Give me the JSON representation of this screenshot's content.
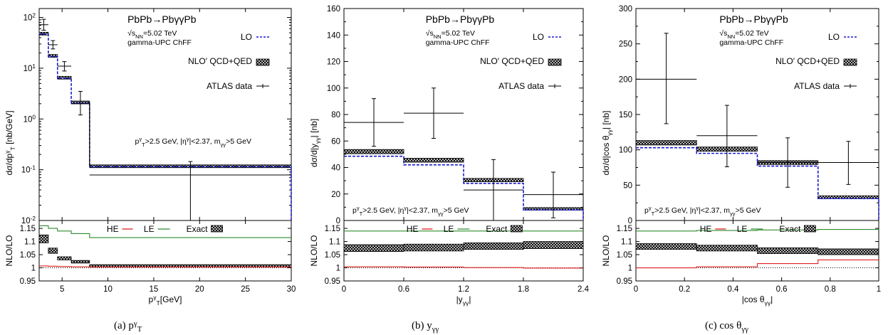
{
  "colors": {
    "lo": "#1a1ad0",
    "he": "#e02020",
    "le": "#2e8b2e",
    "nlo": "#000000",
    "data": "#000000"
  },
  "chart_data": [
    {
      "type": "line",
      "caption": "(a) p_T^γ",
      "process": "PbPb→PbγγPb",
      "energy": "√s_NN=5.02 TeV",
      "generator": "gamma-UPC ChFF",
      "cuts": "p_T^γ>2.5 GeV, |η^γ|<2.37, m_γγ>5 GeV",
      "xlabel": "p_T^γ[GeV]",
      "ylabel": "dσ/dp_T^γ [nb/GeV]",
      "ratio_ylabel": "NLO/LO",
      "xlim": [
        2.5,
        30
      ],
      "ylim": [
        0.01,
        150
      ],
      "log_y": true,
      "xticks": [
        "5",
        "10",
        "15",
        "20",
        "25",
        "30"
      ],
      "yticks": [
        "10⁻²",
        "10⁻¹",
        "10⁰",
        "10¹",
        "10²"
      ],
      "ratio_ylim": [
        0.95,
        1.18
      ],
      "ratio_yticks": [
        "0.95",
        "1",
        "1.05",
        "1.1",
        "1.15"
      ],
      "bins": [
        2.5,
        3.5,
        4.5,
        6,
        8,
        30
      ],
      "lo": [
        47,
        17,
        6.3,
        2.05,
        0.115
      ],
      "nlo": [
        48,
        17.5,
        6.5,
        2.12,
        0.117
      ],
      "data_points": [
        {
          "x": 3,
          "xerr": 0.5,
          "y": 72,
          "ylo": 56,
          "yhi": 92
        },
        {
          "x": 4,
          "xerr": 0.5,
          "y": 29,
          "ylo": 24,
          "yhi": 35
        },
        {
          "x": 5.25,
          "xerr": 0.75,
          "y": 11,
          "ylo": 8.8,
          "yhi": 13.5
        },
        {
          "x": 7,
          "xerr": 1.0,
          "y": 2.0,
          "ylo": 1.2,
          "yhi": 3.5
        },
        {
          "x": 19,
          "xerr": 11,
          "y": 0.079,
          "ylo": 0.01,
          "yhi": 0.145
        }
      ],
      "ratio_band": [
        [
          1.095,
          1.125
        ],
        [
          1.055,
          1.075
        ],
        [
          1.03,
          1.042
        ],
        [
          1.018,
          1.028
        ],
        [
          1.004,
          1.012
        ]
      ],
      "ratio_he": [
        1.007,
        1.006,
        1.005,
        1.004,
        1.003
      ],
      "ratio_le": [
        1.16,
        1.15,
        1.14,
        1.13,
        1.115
      ],
      "legend": {
        "lo": "LO",
        "nlo": "NLO′ QCD+QED",
        "data": "ATLAS data",
        "he": "HE",
        "le": "LE",
        "exact": "Exact"
      }
    },
    {
      "type": "line",
      "caption": "(b) y_γγ",
      "process": "PbPb→PbγγPb",
      "energy": "√s_NN=5.02 TeV",
      "generator": "gamma-UPC ChFF",
      "cuts": "p_T^γ>2.5 GeV, |η^γ|<2.37, m_γγ>5 GeV",
      "xlabel": "|y_γγ|",
      "ylabel": "dσ/d|y_γγ| [nb]",
      "ratio_ylabel": "NLO/LO",
      "xlim": [
        0,
        2.4
      ],
      "ylim": [
        0,
        160
      ],
      "log_y": false,
      "xticks": [
        "0",
        "0.6",
        "1.2",
        "1.8",
        "2.4"
      ],
      "yticks": [
        "0",
        "20",
        "40",
        "60",
        "80",
        "100",
        "120",
        "140",
        "160"
      ],
      "ratio_ylim": [
        0.95,
        1.18
      ],
      "ratio_yticks": [
        "0.95",
        "1",
        "1.05",
        "1.1",
        "1.15"
      ],
      "bins": [
        0,
        0.6,
        1.2,
        1.8,
        2.4
      ],
      "lo": [
        48.5,
        42,
        28,
        8
      ],
      "nlo": [
        52,
        45.5,
        30.5,
        8.8
      ],
      "data_points": [
        {
          "x": 0.3,
          "xerr": 0.3,
          "y": 74,
          "ylo": 56,
          "yhi": 92
        },
        {
          "x": 0.9,
          "xerr": 0.3,
          "y": 81,
          "ylo": 62,
          "yhi": 100
        },
        {
          "x": 1.5,
          "xerr": 0.3,
          "y": 23,
          "ylo": 0,
          "yhi": 46
        },
        {
          "x": 2.1,
          "xerr": 0.3,
          "y": 19.5,
          "ylo": 2,
          "yhi": 36.5
        }
      ],
      "ratio_band": [
        [
          1.062,
          1.088
        ],
        [
          1.064,
          1.09
        ],
        [
          1.07,
          1.095
        ],
        [
          1.073,
          1.1
        ]
      ],
      "ratio_he": [
        1.004,
        1.003,
        1.001,
        0.999
      ],
      "ratio_le": [
        1.14,
        1.14,
        1.14,
        1.14
      ],
      "legend": {
        "lo": "LO",
        "nlo": "NLO′ QCD+QED",
        "data": "ATLAS data",
        "he": "HE",
        "le": "LE",
        "exact": "Exact"
      }
    },
    {
      "type": "line",
      "caption": "(c) cos θ_γγ",
      "process": "PbPb→PbγγPb",
      "energy": "√s_NN=5.02 TeV",
      "generator": "gamma-UPC ChFF",
      "cuts": "p_T^γ>2.5 GeV, |η^γ|<2.37, m_γγ>5 GeV",
      "xlabel": "|cos θ_γγ|",
      "ylabel": "dσ/d|cos θ_γγ| [nb]",
      "ratio_ylabel": "NLO/LO",
      "xlim": [
        0,
        1
      ],
      "ylim": [
        0,
        300
      ],
      "log_y": false,
      "xticks": [
        "0",
        "0.2",
        "0.4",
        "0.6",
        "0.8",
        "1"
      ],
      "yticks": [
        "0",
        "50",
        "100",
        "150",
        "200",
        "250",
        "300"
      ],
      "ratio_ylim": [
        0.95,
        1.18
      ],
      "ratio_yticks": [
        "0.95",
        "1",
        "1.05",
        "1.1",
        "1.15"
      ],
      "bins": [
        0,
        0.25,
        0.5,
        0.75,
        1
      ],
      "lo": [
        103,
        95,
        77,
        31
      ],
      "nlo": [
        110,
        101,
        82,
        33
      ],
      "data_points": [
        {
          "x": 0.125,
          "xerr": 0.125,
          "y": 200,
          "ylo": 137,
          "yhi": 265
        },
        {
          "x": 0.375,
          "xerr": 0.125,
          "y": 120,
          "ylo": 76,
          "yhi": 163
        },
        {
          "x": 0.625,
          "xerr": 0.125,
          "y": 82,
          "ylo": 47,
          "yhi": 117
        },
        {
          "x": 0.875,
          "xerr": 0.125,
          "y": 82,
          "ylo": 51,
          "yhi": 112
        }
      ],
      "ratio_band": [
        [
          1.07,
          1.092
        ],
        [
          1.064,
          1.086
        ],
        [
          1.054,
          1.076
        ],
        [
          1.05,
          1.072
        ]
      ],
      "ratio_he": [
        1.0,
        1.004,
        1.016,
        1.03
      ],
      "ratio_le": [
        1.14,
        1.142,
        1.144,
        1.146
      ],
      "legend": {
        "lo": "LO",
        "nlo": "NLO′ QCD+QED",
        "data": "ATLAS data",
        "he": "HE",
        "le": "LE",
        "exact": "Exact"
      }
    }
  ]
}
